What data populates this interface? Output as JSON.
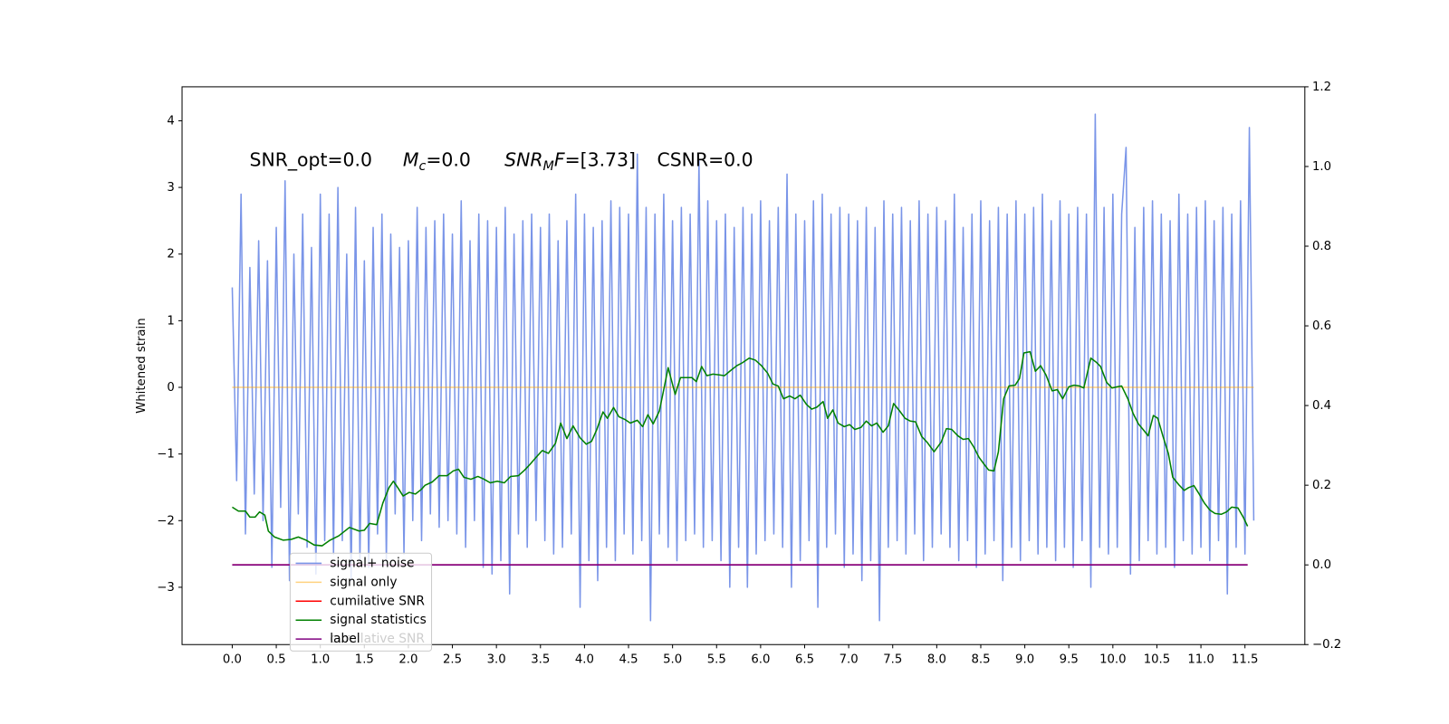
{
  "chart_data": {
    "type": "line",
    "ylabel": "Whitened strain",
    "annotations": [
      {
        "text": "SNR_opt=0.0"
      },
      {
        "base": "M",
        "sub": "c",
        "text": "=0.0"
      },
      {
        "base": "SNR",
        "sub": "M",
        "base2": "F",
        "text": "=[3.73]"
      },
      {
        "text": "CSNR=0.0"
      }
    ],
    "xlim": [
      -0.57,
      12.18
    ],
    "ylim": [
      -3.86,
      4.51
    ],
    "y2lim": [
      -0.2,
      1.2
    ],
    "xticks": [
      {
        "value": 0,
        "label": "0.0"
      },
      0.5,
      {
        "value": 1,
        "label": "1.0"
      },
      1.5,
      {
        "value": 2,
        "label": "2.0"
      },
      2.5,
      {
        "value": 3,
        "label": "3.0"
      },
      3.5,
      {
        "value": 4,
        "label": "4.0"
      },
      4.5,
      {
        "value": 5,
        "label": "5.0"
      },
      5.5,
      {
        "value": 6,
        "label": "6.0"
      },
      6.5,
      {
        "value": 7,
        "label": "7.0"
      },
      7.5,
      {
        "value": 8,
        "label": "8.0"
      },
      8.5,
      {
        "value": 9,
        "label": "9.0"
      },
      9.5,
      {
        "value": 10,
        "label": "10.0"
      },
      10.5,
      {
        "value": 11,
        "label": "11.0"
      },
      11.5
    ],
    "yticks": [
      {
        "value": -3,
        "label": "−3"
      },
      {
        "value": -2,
        "label": "−2"
      },
      {
        "value": -1,
        "label": "−1"
      },
      0,
      1,
      2,
      3,
      4
    ],
    "y2ticks": [
      {
        "value": -0.2,
        "label": "−0.2"
      },
      {
        "value": 0,
        "label": "0.0"
      },
      0.2,
      0.4,
      0.6,
      0.8,
      {
        "value": 1,
        "label": "1.0"
      },
      1.2
    ],
    "legend": "lower left",
    "legend_overlay_text": "cumilative SNR",
    "series": [
      {
        "name": "signal+ noise",
        "color": "#6f8ce6",
        "x": [
          0,
          0.05,
          0.1,
          0.15,
          0.2,
          0.25,
          0.3,
          0.35,
          0.4,
          0.45,
          0.5,
          0.55,
          0.6,
          0.65,
          0.7,
          0.75,
          0.8,
          0.85,
          0.9,
          0.95,
          1,
          1.05,
          1.1,
          1.15,
          1.2,
          1.25,
          1.3,
          1.35,
          1.4,
          1.45,
          1.5,
          1.55,
          1.6,
          1.65,
          1.7,
          1.75,
          1.8,
          1.85,
          1.9,
          1.95,
          2,
          2.05,
          2.1,
          2.15,
          2.2,
          2.25,
          2.3,
          2.35,
          2.4,
          2.45,
          2.5,
          2.55,
          2.6,
          2.65,
          2.7,
          2.75,
          2.8,
          2.85,
          2.9,
          2.95,
          3,
          3.05,
          3.1,
          3.15,
          3.2,
          3.25,
          3.3,
          3.35,
          3.4,
          3.45,
          3.5,
          3.55,
          3.6,
          3.65,
          3.7,
          3.75,
          3.8,
          3.85,
          3.9,
          3.95,
          4,
          4.05,
          4.1,
          4.15,
          4.2,
          4.25,
          4.3,
          4.35,
          4.4,
          4.45,
          4.5,
          4.55,
          4.6,
          4.65,
          4.7,
          4.75,
          4.8,
          4.85,
          4.9,
          4.95,
          5,
          5.05,
          5.1,
          5.15,
          5.2,
          5.25,
          5.3,
          5.35,
          5.4,
          5.45,
          5.5,
          5.55,
          5.6,
          5.65,
          5.7,
          5.75,
          5.8,
          5.85,
          5.9,
          5.95,
          6,
          6.05,
          6.1,
          6.15,
          6.2,
          6.25,
          6.3,
          6.35,
          6.4,
          6.45,
          6.5,
          6.55,
          6.6,
          6.65,
          6.7,
          6.75,
          6.8,
          6.85,
          6.9,
          6.95,
          7,
          7.05,
          7.1,
          7.15,
          7.2,
          7.25,
          7.3,
          7.35,
          7.4,
          7.45,
          7.5,
          7.55,
          7.6,
          7.65,
          7.7,
          7.75,
          7.8,
          7.85,
          7.9,
          7.95,
          8,
          8.05,
          8.1,
          8.15,
          8.2,
          8.25,
          8.3,
          8.35,
          8.4,
          8.45,
          8.5,
          8.55,
          8.6,
          8.65,
          8.7,
          8.75,
          8.8,
          8.85,
          8.9,
          8.95,
          9,
          9.05,
          9.1,
          9.15,
          9.2,
          9.25,
          9.3,
          9.35,
          9.4,
          9.45,
          9.5,
          9.55,
          9.6,
          9.65,
          9.7,
          9.75,
          9.8,
          9.85,
          9.9,
          9.95,
          10,
          10.05,
          10.1,
          10.15,
          10.2,
          10.25,
          10.3,
          10.35,
          10.4,
          10.45,
          10.5,
          10.55,
          10.6,
          10.65,
          10.7,
          10.75,
          10.8,
          10.85,
          10.9,
          10.95,
          11,
          11.05,
          11.1,
          11.15,
          11.2,
          11.25,
          11.3,
          11.35,
          11.4,
          11.45,
          11.5,
          11.55,
          11.6
        ],
        "values": [
          1.5,
          -1.4,
          2.9,
          -2.2,
          1.8,
          -1.6,
          2.2,
          -2.0,
          1.9,
          -2.7,
          2.4,
          -1.8,
          3.1,
          -2.9,
          2.0,
          -1.9,
          2.6,
          -2.4,
          2.1,
          -2.8,
          2.9,
          -2.3,
          2.6,
          -2.5,
          3.0,
          -2.3,
          2.0,
          -2.9,
          2.7,
          -2.6,
          1.9,
          -2.7,
          2.4,
          -2.2,
          2.6,
          -2.6,
          2.3,
          -1.9,
          2.1,
          -2.5,
          2.2,
          -2.0,
          2.7,
          -2.3,
          2.4,
          -1.9,
          2.5,
          -2.1,
          2.6,
          -2.0,
          2.3,
          -2.2,
          2.8,
          -2.4,
          2.2,
          -2.0,
          2.6,
          -2.7,
          2.5,
          -2.8,
          2.4,
          -2.6,
          2.7,
          -3.1,
          2.3,
          -2.2,
          2.5,
          -2.4,
          2.6,
          -2.0,
          2.4,
          -2.3,
          2.6,
          -2.5,
          2.2,
          -2.4,
          2.5,
          -2.2,
          2.9,
          -3.3,
          2.6,
          -2.6,
          2.4,
          -2.9,
          2.5,
          -2.4,
          2.8,
          -2.6,
          2.7,
          -2.2,
          2.6,
          -2.5,
          3.5,
          -2.3,
          2.7,
          -3.5,
          2.6,
          -2.2,
          2.9,
          -2.4,
          2.5,
          -2.6,
          2.7,
          -2.3,
          2.6,
          -2.2,
          3.4,
          -2.4,
          2.8,
          -2.3,
          2.5,
          -2.6,
          2.6,
          -3.0,
          2.4,
          -2.4,
          2.7,
          -3.0,
          2.6,
          -2.5,
          2.8,
          -2.3,
          2.5,
          -2.2,
          2.7,
          -2.4,
          3.2,
          -3.0,
          2.6,
          -2.6,
          2.5,
          -2.3,
          2.8,
          -3.3,
          2.9,
          -2.4,
          2.6,
          -2.2,
          2.7,
          -2.7,
          2.6,
          -2.5,
          2.5,
          -2.9,
          2.7,
          -2.6,
          2.4,
          -3.5,
          2.8,
          -2.4,
          2.6,
          -2.3,
          2.7,
          -2.5,
          2.5,
          -2.2,
          2.8,
          -2.6,
          2.6,
          -2.4,
          2.7,
          -2.2,
          2.5,
          -2.4,
          2.9,
          -2.6,
          2.4,
          -2.3,
          2.6,
          -2.7,
          2.8,
          -2.5,
          2.5,
          -2.3,
          2.7,
          -2.9,
          2.6,
          -2.4,
          2.8,
          -2.6,
          2.6,
          -2.3,
          2.7,
          -2.5,
          2.9,
          -2.4,
          2.5,
          -2.6,
          2.8,
          -2.4,
          2.6,
          -2.7,
          2.7,
          -2.3,
          2.6,
          -3.0,
          4.1,
          -2.4,
          2.7,
          -2.5,
          2.9,
          -2.4,
          2.6,
          3.6,
          -2.8,
          2.4,
          -2.6,
          2.7,
          -2.3,
          2.8,
          -2.5,
          2.6,
          -2.4,
          2.5,
          -2.7,
          2.9,
          -2.3,
          2.6,
          -2.5,
          2.7,
          -2.4,
          2.8,
          -2.6,
          2.5,
          -2.3,
          2.7,
          -3.1,
          2.6,
          -2.4,
          2.8,
          -2.5,
          3.9,
          -2.0
        ]
      },
      {
        "name": "signal only",
        "color": "#ffa500",
        "x": [
          0,
          11.6
        ],
        "values": [
          0,
          0
        ]
      },
      {
        "name": "cumilative SNR",
        "color": "#ff0000",
        "axis": "y2",
        "x": [
          0,
          11.53
        ],
        "values": [
          0,
          0
        ]
      },
      {
        "name": "signal statistics",
        "color": "#008000",
        "axis": "y2",
        "x": [
          0,
          0.07,
          0.15,
          0.2,
          0.26,
          0.31,
          0.37,
          0.41,
          0.48,
          0.58,
          0.67,
          0.75,
          0.84,
          0.93,
          1.02,
          1.11,
          1.21,
          1.33,
          1.44,
          1.5,
          1.56,
          1.64,
          1.71,
          1.78,
          1.83,
          1.88,
          1.94,
          2.01,
          2.08,
          2.15,
          2.19,
          2.27,
          2.35,
          2.44,
          2.51,
          2.57,
          2.63,
          2.71,
          2.79,
          2.86,
          2.93,
          3.01,
          3.09,
          3.16,
          3.25,
          3.32,
          3.38,
          3.45,
          3.52,
          3.59,
          3.67,
          3.73,
          3.8,
          3.87,
          3.95,
          4.02,
          4.08,
          4.14,
          4.21,
          4.26,
          4.33,
          4.39,
          4.46,
          4.52,
          4.6,
          4.66,
          4.72,
          4.78,
          4.85,
          4.9,
          4.95,
          5.03,
          5.09,
          5.15,
          5.22,
          5.27,
          5.33,
          5.39,
          5.46,
          5.53,
          5.59,
          5.66,
          5.73,
          5.79,
          5.87,
          5.94,
          6.01,
          6.08,
          6.14,
          6.2,
          6.26,
          6.33,
          6.39,
          6.45,
          6.52,
          6.58,
          6.64,
          6.71,
          6.76,
          6.82,
          6.88,
          6.95,
          7.01,
          7.07,
          7.14,
          7.2,
          7.26,
          7.32,
          7.39,
          7.45,
          7.51,
          7.58,
          7.64,
          7.7,
          7.76,
          7.83,
          7.89,
          7.97,
          8.05,
          8.11,
          8.17,
          8.24,
          8.3,
          8.36,
          8.42,
          8.48,
          8.54,
          8.59,
          8.65,
          8.7,
          8.76,
          8.82,
          8.89,
          8.94,
          8.99,
          9.06,
          9.12,
          9.18,
          9.24,
          9.31,
          9.37,
          9.43,
          9.5,
          9.56,
          9.62,
          9.67,
          9.75,
          9.81,
          9.86,
          9.93,
          9.99,
          10.05,
          10.1,
          10.17,
          10.23,
          10.29,
          10.35,
          10.4,
          10.46,
          10.51,
          10.57,
          10.63,
          10.68,
          10.75,
          10.81,
          10.86,
          10.92,
          10.98,
          11.04,
          11.1,
          11.16,
          11.23,
          11.29,
          11.35,
          11.42,
          11.48,
          11.53
        ],
        "values": [
          0.145,
          0.135,
          0.135,
          0.12,
          0.12,
          0.133,
          0.125,
          0.085,
          0.07,
          0.062,
          0.064,
          0.07,
          0.062,
          0.05,
          0.048,
          0.062,
          0.073,
          0.094,
          0.085,
          0.087,
          0.104,
          0.101,
          0.155,
          0.194,
          0.21,
          0.194,
          0.173,
          0.182,
          0.178,
          0.19,
          0.2,
          0.208,
          0.224,
          0.224,
          0.236,
          0.24,
          0.22,
          0.215,
          0.222,
          0.215,
          0.206,
          0.21,
          0.206,
          0.222,
          0.224,
          0.238,
          0.252,
          0.27,
          0.287,
          0.28,
          0.305,
          0.356,
          0.317,
          0.349,
          0.319,
          0.303,
          0.31,
          0.34,
          0.384,
          0.368,
          0.395,
          0.372,
          0.365,
          0.356,
          0.363,
          0.347,
          0.377,
          0.354,
          0.386,
          0.44,
          0.495,
          0.428,
          0.47,
          0.47,
          0.47,
          0.46,
          0.498,
          0.475,
          0.479,
          0.477,
          0.475,
          0.488,
          0.5,
          0.507,
          0.519,
          0.514,
          0.5,
          0.481,
          0.454,
          0.449,
          0.417,
          0.424,
          0.417,
          0.426,
          0.403,
          0.391,
          0.396,
          0.41,
          0.368,
          0.389,
          0.356,
          0.347,
          0.352,
          0.34,
          0.345,
          0.361,
          0.349,
          0.356,
          0.333,
          0.349,
          0.405,
          0.386,
          0.368,
          0.361,
          0.359,
          0.322,
          0.308,
          0.284,
          0.308,
          0.342,
          0.34,
          0.324,
          0.315,
          0.317,
          0.296,
          0.27,
          0.252,
          0.238,
          0.236,
          0.284,
          0.417,
          0.449,
          0.451,
          0.468,
          0.532,
          0.535,
          0.486,
          0.5,
          0.477,
          0.437,
          0.44,
          0.417,
          0.447,
          0.451,
          0.449,
          0.444,
          0.519,
          0.509,
          0.498,
          0.458,
          0.444,
          0.447,
          0.449,
          0.417,
          0.38,
          0.354,
          0.338,
          0.324,
          0.375,
          0.368,
          0.322,
          0.28,
          0.22,
          0.201,
          0.187,
          0.194,
          0.199,
          0.178,
          0.155,
          0.138,
          0.129,
          0.127,
          0.133,
          0.145,
          0.143,
          0.12,
          0.097
        ]
      },
      {
        "name": "label",
        "color": "#800080",
        "axis": "y2",
        "x": [
          0,
          11.53
        ],
        "values": [
          0,
          0
        ]
      }
    ]
  }
}
